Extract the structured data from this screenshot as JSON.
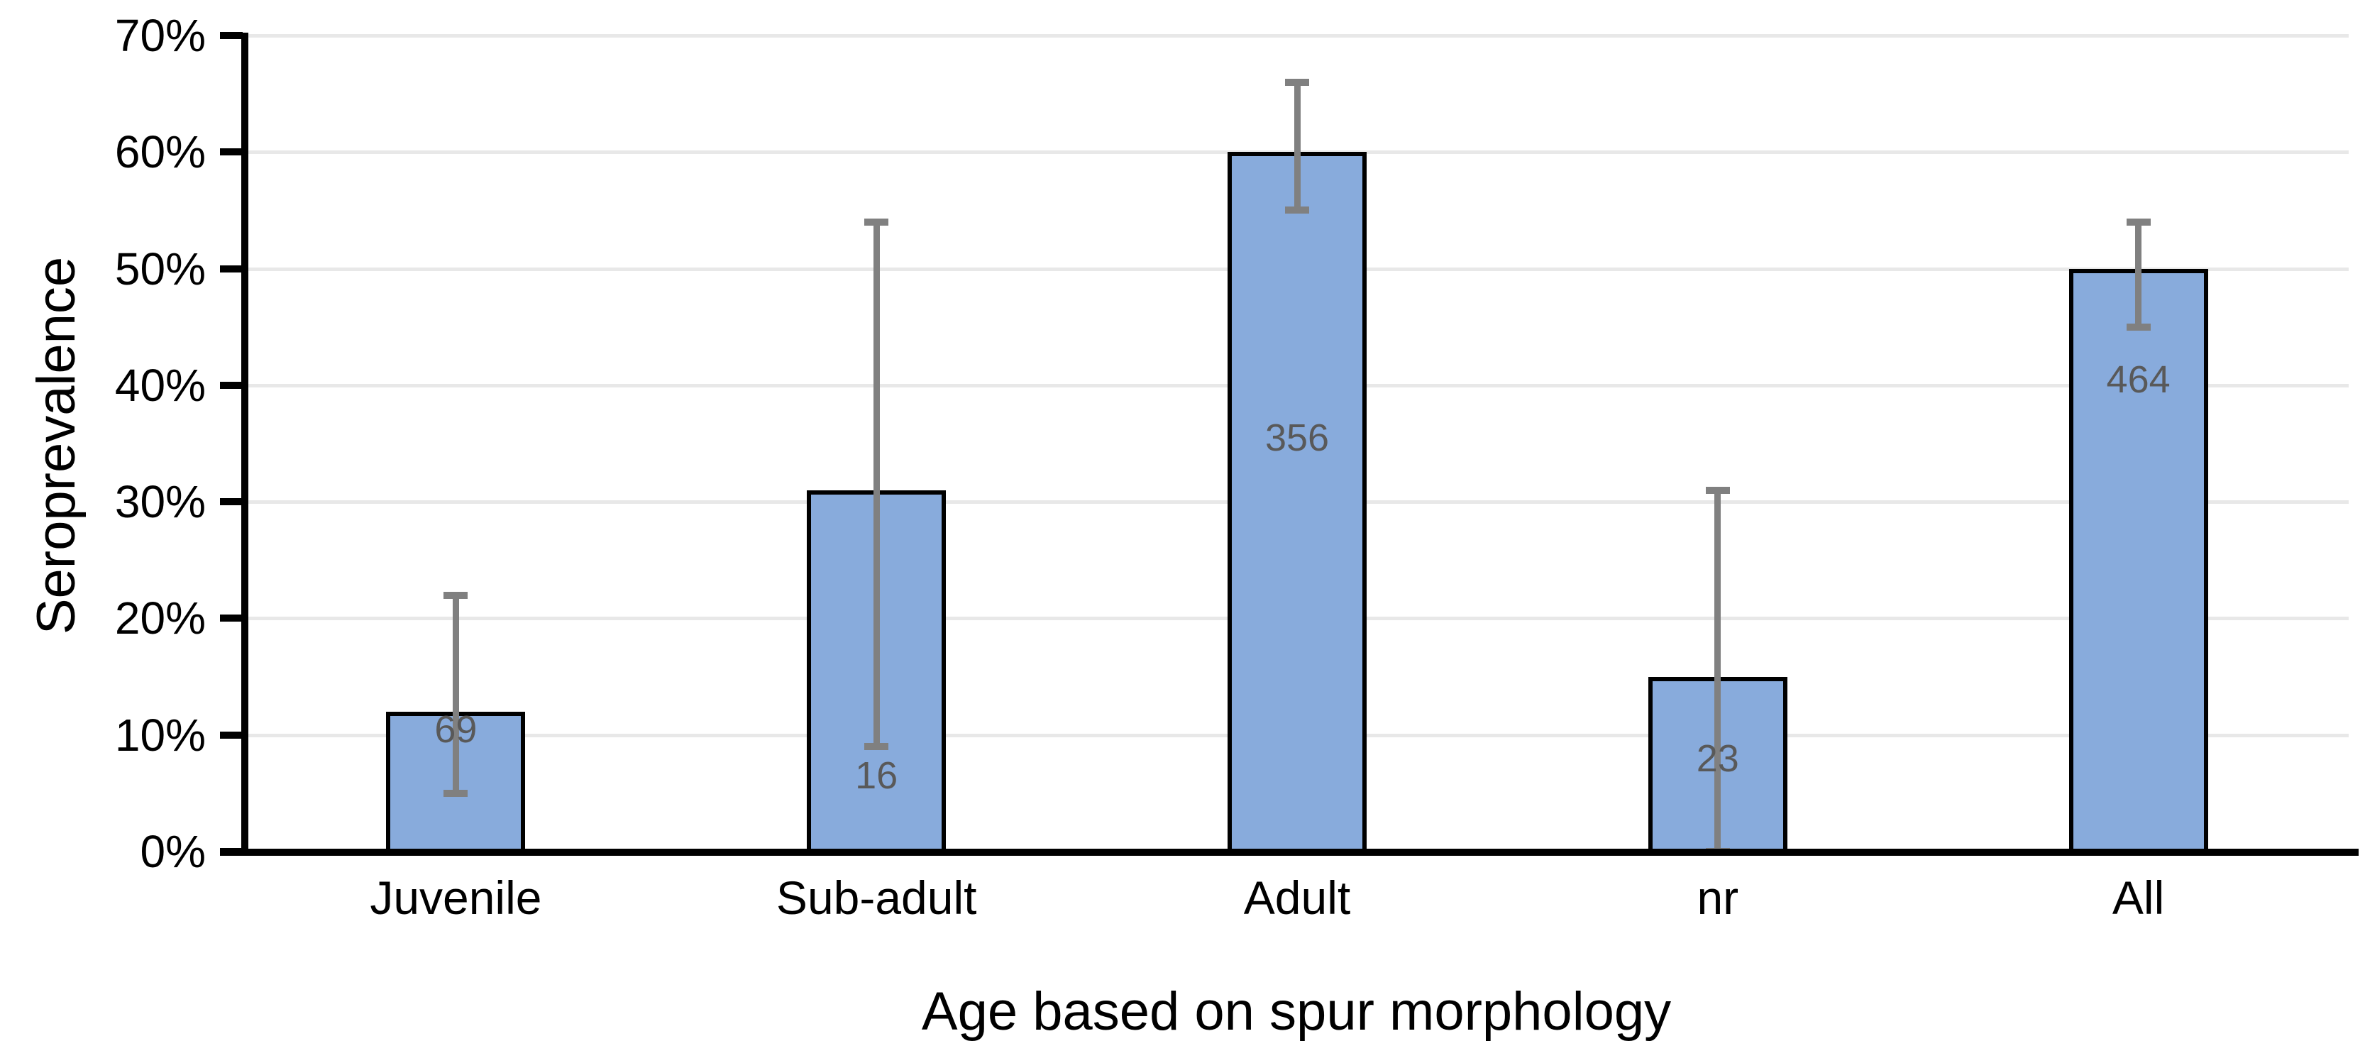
{
  "chart_data": {
    "type": "bar",
    "title": "",
    "xlabel": "Age based on spur morphology",
    "ylabel": "Seroprevalence",
    "categories": [
      "Juvenile",
      "Sub-adult",
      "Adult",
      "nr",
      "All"
    ],
    "series": [
      {
        "name": "Seroprevalence",
        "values_pct": [
          12,
          31,
          60,
          15,
          50
        ]
      }
    ],
    "error_bars": {
      "upper_pct": [
        22,
        54,
        66,
        31,
        54
      ],
      "lower_pct": [
        5,
        9,
        55,
        0,
        45
      ]
    },
    "bar_labels": [
      "69",
      "16",
      "356",
      "23",
      "464"
    ],
    "bar_label_center_pct": [
      10.5,
      6.5,
      35.5,
      8,
      40.5
    ],
    "y_axis": {
      "min": 0,
      "max": 70,
      "step": 10,
      "tick_labels": [
        "0%",
        "10%",
        "20%",
        "30%",
        "40%",
        "50%",
        "60%",
        "70%"
      ]
    },
    "grid": "horizontal",
    "legend": "none",
    "colors": {
      "bar_fill": "#88ABDC",
      "bar_border": "#000000",
      "error_bar": "#808080",
      "bar_label_text": "#595959",
      "gridline": "#E8E8E8",
      "axis_line": "#000000",
      "text": "#000000"
    }
  }
}
